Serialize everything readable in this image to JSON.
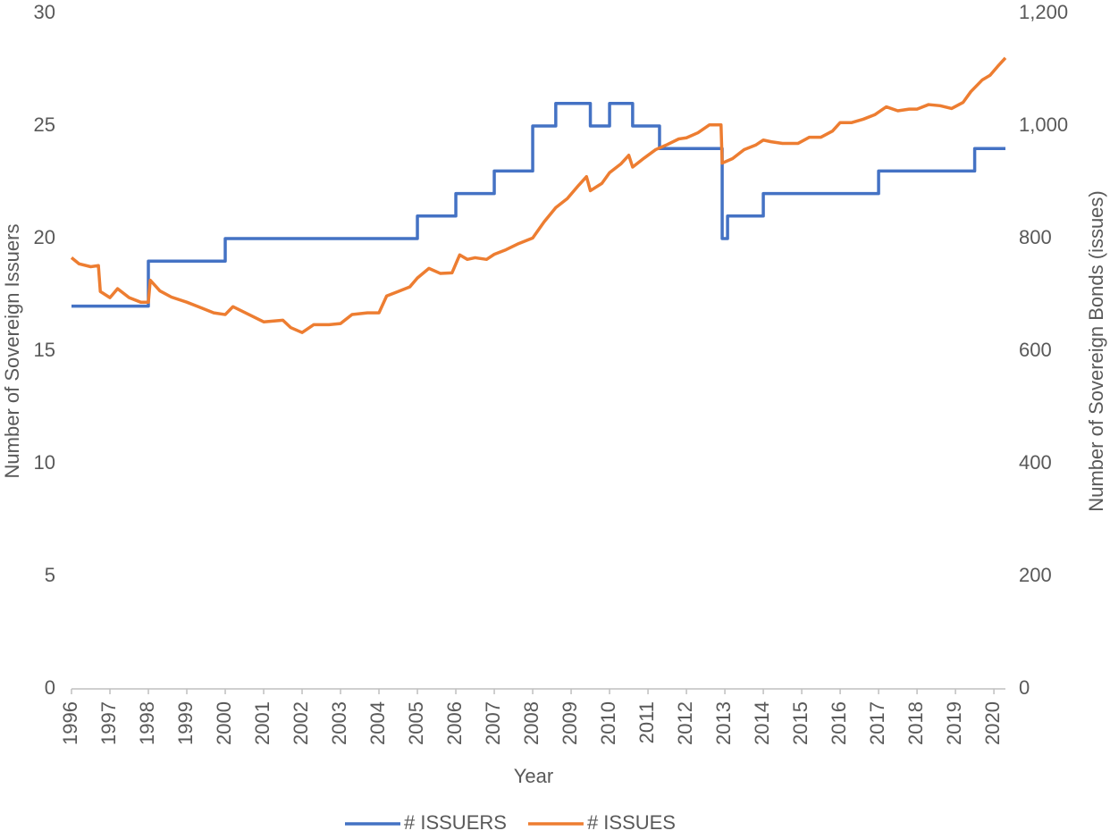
{
  "chart_data": {
    "type": "line",
    "xlabel": "Year",
    "ylabel": "Number of Sovereign Issuers",
    "y2label": "Number of Sovereign Bonds (issues)",
    "xlim": [
      1996,
      2020.3
    ],
    "xticks": [
      1996,
      1997,
      1998,
      1999,
      2000,
      2001,
      2002,
      2003,
      2004,
      2005,
      2006,
      2007,
      2008,
      2009,
      2010,
      2011,
      2012,
      2013,
      2014,
      2015,
      2016,
      2017,
      2018,
      2019,
      2020
    ],
    "ylim": [
      0,
      30
    ],
    "yticks": [
      0,
      5,
      10,
      15,
      20,
      25,
      30
    ],
    "y2lim": [
      0,
      1200
    ],
    "y2ticks": [
      0,
      200,
      400,
      600,
      800,
      {
        "value": 1000,
        "label": "1,000"
      },
      {
        "value": 1200,
        "label": "1,200"
      }
    ],
    "legend": "bottom",
    "series": [
      {
        "name": "# ISSUERS",
        "color": "#4472c4",
        "drawstyle": "steps-post",
        "x": [
          1996,
          1998,
          2000,
          2005,
          2006,
          2007,
          2008,
          2008.6,
          2009.5,
          2010,
          2010.6,
          2011.3,
          2012.93,
          2013.07,
          2014,
          2017,
          2019.5,
          2020.3
        ],
        "values": [
          17,
          19,
          20,
          21,
          22,
          23,
          25,
          26,
          25,
          26,
          25,
          24,
          20,
          21,
          22,
          23,
          24,
          24
        ]
      },
      {
        "name": "# ISSUES",
        "color": "#ed7d31",
        "axis": "y2",
        "x": [
          1996,
          1996.2,
          1996.5,
          1996.7,
          1996.75,
          1997,
          1997.2,
          1997.5,
          1997.8,
          1998,
          1998.05,
          1998.3,
          1998.6,
          1999,
          1999.3,
          1999.7,
          2000,
          2000.2,
          2000.5,
          2001,
          2001.5,
          2001.7,
          2002,
          2002.3,
          2002.7,
          2003,
          2003.3,
          2003.7,
          2004,
          2004.2,
          2004.5,
          2004.8,
          2005,
          2005.3,
          2005.6,
          2005.9,
          2006.1,
          2006.3,
          2006.5,
          2006.8,
          2007,
          2007.3,
          2007.6,
          2008,
          2008.3,
          2008.6,
          2008.9,
          2009.2,
          2009.4,
          2009.5,
          2009.8,
          2010,
          2010.3,
          2010.5,
          2010.6,
          2010.9,
          2011.2,
          2011.5,
          2011.8,
          2012,
          2012.3,
          2012.6,
          2012.9,
          2012.93,
          2013.2,
          2013.5,
          2013.8,
          2014,
          2014.2,
          2014.5,
          2014.9,
          2015.2,
          2015.5,
          2015.8,
          2016,
          2016.3,
          2016.6,
          2016.9,
          2017.2,
          2017.5,
          2017.8,
          2018,
          2018.3,
          2018.6,
          2018.9,
          2019.2,
          2019.4,
          2019.7,
          2019.9,
          2020.1,
          2020.3
        ],
        "values": [
          766,
          755,
          750,
          752,
          706,
          695,
          711,
          695,
          687,
          687,
          726,
          707,
          696,
          687,
          679,
          668,
          665,
          679,
          669,
          652,
          655,
          642,
          633,
          647,
          647,
          649,
          665,
          668,
          668,
          698,
          706,
          714,
          730,
          747,
          738,
          739,
          771,
          763,
          766,
          763,
          772,
          780,
          790,
          801,
          830,
          855,
          871,
          895,
          910,
          885,
          898,
          917,
          933,
          948,
          927,
          943,
          958,
          967,
          977,
          979,
          988,
          1002,
          1002,
          934,
          942,
          958,
          966,
          975,
          972,
          969,
          969,
          980,
          980,
          991,
          1006,
          1006,
          1012,
          1020,
          1034,
          1027,
          1030,
          1030,
          1038,
          1036,
          1031,
          1042,
          1061,
          1082,
          1090,
          1106,
          1121
        ]
      }
    ]
  }
}
